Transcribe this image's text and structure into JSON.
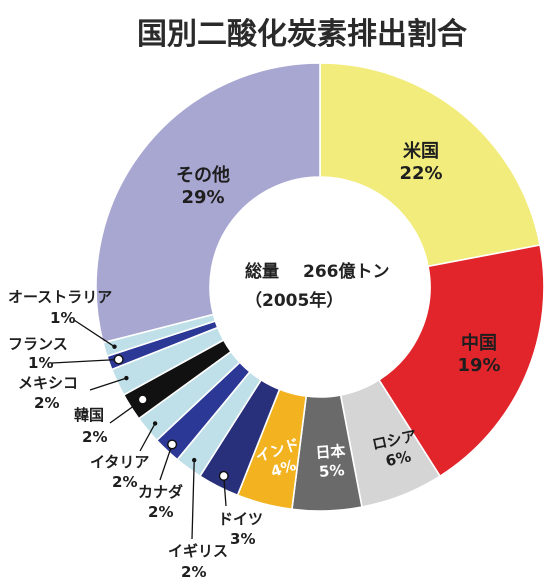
{
  "chart_data": {
    "type": "pie",
    "style": "donut",
    "title": "国別二酸化炭素排出割合",
    "total_label": "総量",
    "total_value": "266億トン",
    "year_label": "（2005年）",
    "unit": "%",
    "categories": [
      "米国",
      "中国",
      "ロシア",
      "日本",
      "インド",
      "ドイツ",
      "イギリス",
      "カナダ",
      "イタリア",
      "韓国",
      "メキシコ",
      "フランス",
      "オーストラリア",
      "その他"
    ],
    "values": [
      22,
      19,
      6,
      5,
      4,
      3,
      2,
      2,
      2,
      2,
      2,
      1,
      1,
      29
    ],
    "colors": [
      "#f2ec7c",
      "#e2242b",
      "#d5d5d5",
      "#6a6a6a",
      "#f3b320",
      "#282f7b",
      "#bfe0e8",
      "#2c3896",
      "#bfe0e8",
      "#111111",
      "#bfe0e8",
      "#2c3896",
      "#bfe0e8",
      "#a8a7d1"
    ]
  }
}
